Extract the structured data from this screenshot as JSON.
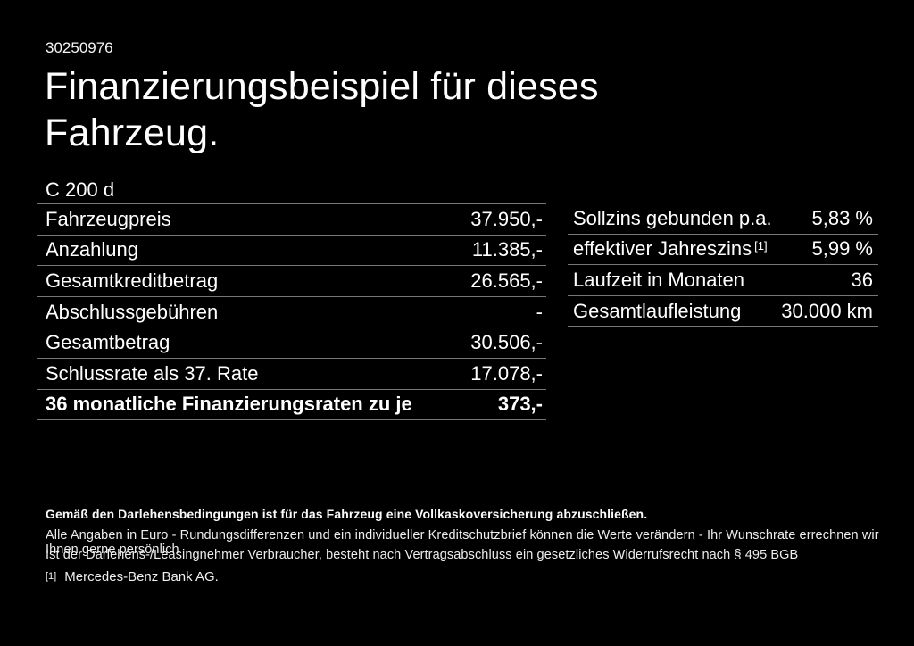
{
  "page": {
    "id_number": "30250976",
    "title": "Finanzierungsbeispiel für dieses Fahrzeug.",
    "model": "C 200 d"
  },
  "finance_table": {
    "rows": [
      {
        "label": "Fahrzeugpreis",
        "value": "37.950,-"
      },
      {
        "label": "Anzahlung",
        "value": "11.385,-"
      },
      {
        "label": "Gesamtkreditbetrag",
        "value": "26.565,-"
      },
      {
        "label": "Abschlussgebühren",
        "value": "-"
      },
      {
        "label": "Gesamtbetrag",
        "value": "30.506,-"
      },
      {
        "label": "Schlussrate als 37. Rate",
        "value": "17.078,-"
      },
      {
        "label": "36 monatliche Finanzierungsraten zu je",
        "value": "373,-"
      }
    ]
  },
  "conditions_table": {
    "rows": [
      {
        "label": "Sollzins gebunden p.a.",
        "value": "5,83 %"
      },
      {
        "label": "effektiver Jahreszins",
        "sup": "[1]",
        "value": "5,99 %"
      },
      {
        "label": "Laufzeit in Monaten",
        "value": "36"
      },
      {
        "label": "Gesamtlaufleistung",
        "value": "30.000 km"
      }
    ]
  },
  "footer": {
    "insurance_note": "Gemäß den Darlehensbedingungen ist für das Fahrzeug eine Vollkaskoversicherung abzuschließen.",
    "note_line1": "Alle Angaben in Euro - Rundungsdifferenzen und ein individueller Kreditschutzbrief können die Werte verändern - Ihr Wunschrate errechnen wir Ihnen gerne persönlich",
    "note_line2": "Ist der Darlehens-/Leasingnehmer Verbraucher, besteht nach Vertragsabschluss ein gesetzliches Widerrufsrecht nach § 495 BGB",
    "footnote_marker": "[1]",
    "footnote_text": "Mercedes-Benz Bank AG."
  },
  "colors": {
    "background": "#000000",
    "text": "#ffffff",
    "divider": "#777777"
  }
}
